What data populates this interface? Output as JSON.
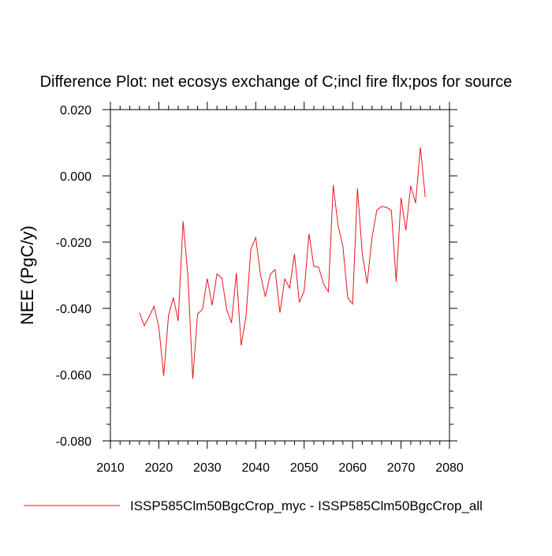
{
  "chart_data": {
    "type": "line",
    "title": "Difference Plot: net ecosys exchange of C;incl fire flx;pos for source",
    "xlabel": "",
    "ylabel": "NEE  (PgC/y)",
    "xlim": [
      2010,
      2080
    ],
    "ylim": [
      -0.08,
      0.02
    ],
    "x_ticks": [
      2010,
      2020,
      2030,
      2040,
      2050,
      2060,
      2070,
      2080
    ],
    "x_tick_labels": [
      "2010",
      "2020",
      "2030",
      "2040",
      "2050",
      "2060",
      "2070",
      "2080"
    ],
    "y_ticks": [
      -0.08,
      -0.06,
      -0.04,
      -0.02,
      0.0,
      0.02
    ],
    "y_tick_labels": [
      "-0.080",
      "-0.060",
      "-0.040",
      "-0.020",
      "0.000",
      "0.020"
    ],
    "grid": false,
    "legend_position": "bottom",
    "series": [
      {
        "name": "ISSP585Clm50BgcCrop_myc - ISSP585Clm50BgcCrop_all",
        "color": "#e8141b",
        "x": [
          2016,
          2017,
          2018,
          2019,
          2020,
          2021,
          2022,
          2023,
          2024,
          2025,
          2026,
          2027,
          2028,
          2029,
          2030,
          2031,
          2032,
          2033,
          2034,
          2035,
          2036,
          2037,
          2038,
          2039,
          2040,
          2041,
          2042,
          2043,
          2044,
          2045,
          2046,
          2047,
          2048,
          2049,
          2050,
          2051,
          2052,
          2053,
          2054,
          2055,
          2056,
          2057,
          2058,
          2059,
          2060,
          2061,
          2062,
          2063,
          2064,
          2065,
          2066,
          2067,
          2068,
          2069,
          2070,
          2071,
          2072,
          2073,
          2074,
          2075
        ],
        "values": [
          -0.0413,
          -0.0452,
          -0.0425,
          -0.0394,
          -0.0456,
          -0.0604,
          -0.0421,
          -0.0368,
          -0.0438,
          -0.0137,
          -0.0302,
          -0.0613,
          -0.0417,
          -0.0403,
          -0.031,
          -0.0391,
          -0.0296,
          -0.0308,
          -0.0403,
          -0.0444,
          -0.0293,
          -0.0512,
          -0.0423,
          -0.0221,
          -0.0186,
          -0.03,
          -0.0365,
          -0.0297,
          -0.0283,
          -0.0413,
          -0.0311,
          -0.0339,
          -0.0236,
          -0.0382,
          -0.0347,
          -0.0175,
          -0.0273,
          -0.0276,
          -0.0327,
          -0.035,
          -0.0028,
          -0.015,
          -0.0213,
          -0.0368,
          -0.0387,
          -0.0038,
          -0.0235,
          -0.0325,
          -0.0187,
          -0.0104,
          -0.0092,
          -0.0095,
          -0.0104,
          -0.0319,
          -0.0066,
          -0.0164,
          -0.003,
          -0.0082,
          0.0086,
          -0.0064
        ]
      }
    ]
  }
}
